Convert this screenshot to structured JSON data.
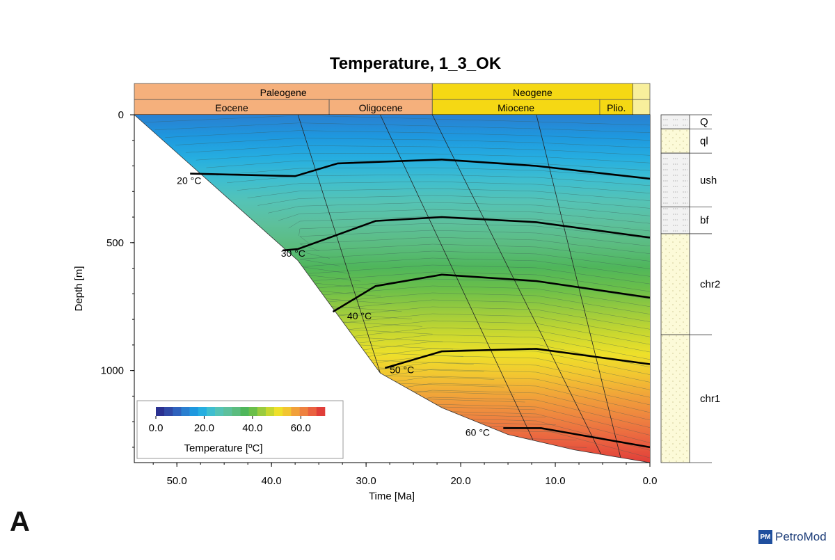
{
  "panel_label": "A",
  "logo": {
    "badge": "PM",
    "text": "PetroMod"
  },
  "colors": {
    "paleogene": "#f5b07c",
    "neogene": "#f5d814",
    "quaternary": "#f8ef9c",
    "isotherm": "#000000",
    "colormap": [
      "#2b3191",
      "#3049a6",
      "#2f62bd",
      "#2a7fd0",
      "#1e98df",
      "#26aee0",
      "#3fbecf",
      "#55c3b5",
      "#5dc09c",
      "#5bbc7f",
      "#4fb65b",
      "#6abf4a",
      "#9acb3e",
      "#c7d730",
      "#eee02a",
      "#f2c531",
      "#f1a03a",
      "#ee8140",
      "#ea6140",
      "#e03e39"
    ]
  },
  "chart_data": {
    "type": "heatmap",
    "title": "Temperature, 1_3_OK",
    "xlabel": "Time [Ma]",
    "ylabel": "Depth [m]",
    "x_ticks": [
      "50.0",
      "40.0",
      "30.0",
      "20.0",
      "10.0",
      "0.0"
    ],
    "y_ticks": [
      "0",
      "500",
      "1000"
    ],
    "xlim": [
      54.5,
      0
    ],
    "ylim": [
      0,
      1360
    ],
    "stratigraphy_periods": [
      {
        "name": "Paleogene",
        "start": 54.5,
        "end": 23.0
      },
      {
        "name": "Neogene",
        "start": 23.0,
        "end": 1.8
      },
      {
        "name": "",
        "start": 1.8,
        "end": 0.0
      }
    ],
    "stratigraphy_epochs": [
      {
        "name": "Eocene",
        "start": 54.5,
        "end": 33.9
      },
      {
        "name": "Oligocene",
        "start": 33.9,
        "end": 23.0
      },
      {
        "name": "Miocene",
        "start": 23.0,
        "end": 5.3
      },
      {
        "name": "Plio.",
        "start": 5.3,
        "end": 1.8
      },
      {
        "name": "",
        "start": 1.8,
        "end": 0.0
      }
    ],
    "basement_curve": [
      [
        54.5,
        0
      ],
      [
        37.2,
        570
      ],
      [
        28.5,
        1010
      ],
      [
        22.0,
        1145
      ],
      [
        15.0,
        1250
      ],
      [
        8.0,
        1310
      ],
      [
        0.0,
        1360
      ]
    ],
    "isotherms": [
      {
        "label": "20 °C",
        "label_pos": [
          50.0,
          270
        ],
        "points": [
          [
            48.6,
            230
          ],
          [
            37.5,
            240
          ],
          [
            33.0,
            190
          ],
          [
            22.0,
            175
          ],
          [
            12.0,
            200
          ],
          [
            0.0,
            250
          ]
        ]
      },
      {
        "label": "30 °C",
        "label_pos": [
          39.0,
          555
        ],
        "points": [
          [
            38.8,
            530
          ],
          [
            37.2,
            525
          ],
          [
            29.0,
            415
          ],
          [
            22.0,
            400
          ],
          [
            12.0,
            420
          ],
          [
            0.0,
            480
          ]
        ]
      },
      {
        "label": "40 °C",
        "label_pos": [
          32.0,
          800
        ],
        "points": [
          [
            33.5,
            770
          ],
          [
            29.0,
            670
          ],
          [
            22.0,
            625
          ],
          [
            12.0,
            650
          ],
          [
            0.0,
            715
          ]
        ]
      },
      {
        "label": "50 °C",
        "label_pos": [
          27.5,
          1010
        ],
        "points": [
          [
            28.0,
            990
          ],
          [
            22.0,
            925
          ],
          [
            12.0,
            915
          ],
          [
            0.0,
            975
          ]
        ]
      },
      {
        "label": "60 °C",
        "label_pos": [
          19.5,
          1255
        ],
        "points": [
          [
            15.5,
            1225
          ],
          [
            11.5,
            1225
          ],
          [
            0.0,
            1300
          ]
        ]
      }
    ],
    "formations": [
      {
        "name": "Q",
        "top": 0,
        "bottom": 55
      },
      {
        "name": "ql",
        "top": 55,
        "bottom": 150
      },
      {
        "name": "ush",
        "top": 150,
        "bottom": 360
      },
      {
        "name": "bf",
        "top": 360,
        "bottom": 465
      },
      {
        "name": "chr2",
        "top": 465,
        "bottom": 860
      },
      {
        "name": "chr1",
        "top": 860,
        "bottom": 1360
      }
    ],
    "colorbar": {
      "label": "Temperature [ºC]",
      "range": [
        0,
        70
      ],
      "ticks": [
        "0.0",
        "20.0",
        "40.0",
        "60.0"
      ],
      "tick_values": [
        0,
        20,
        40,
        60
      ]
    }
  }
}
